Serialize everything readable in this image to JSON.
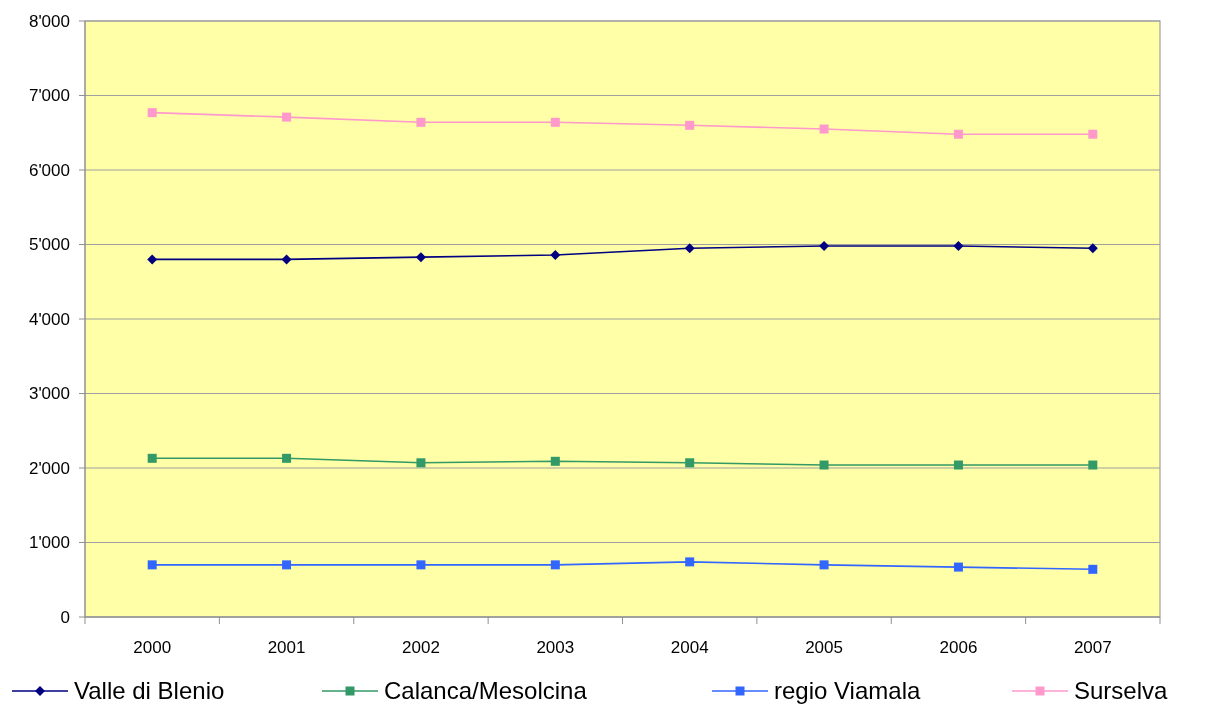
{
  "chart_data": {
    "type": "line",
    "categories": [
      "2000",
      "2001",
      "2002",
      "2003",
      "2004",
      "2005",
      "2006",
      "2007"
    ],
    "series": [
      {
        "name": "Valle di Blenio",
        "color": "#000080",
        "marker": "diamond",
        "values": [
          4800,
          4800,
          4830,
          4860,
          4950,
          4980,
          4980,
          4950
        ]
      },
      {
        "name": "Calanca/Mesolcina",
        "color": "#339966",
        "marker": "square",
        "values": [
          2130,
          2130,
          2070,
          2090,
          2070,
          2040,
          2040,
          2040
        ]
      },
      {
        "name": "regio Viamala",
        "color": "#3366ff",
        "marker": "square",
        "values": [
          700,
          700,
          700,
          700,
          740,
          700,
          670,
          640
        ]
      },
      {
        "name": "Surselva",
        "color": "#ff99cc",
        "marker": "square",
        "values": [
          6770,
          6710,
          6640,
          6640,
          6600,
          6550,
          6480,
          6480
        ]
      }
    ],
    "ylim": [
      0,
      8000
    ],
    "yticks": [
      0,
      {
        "value": 1000,
        "label": "1'000"
      },
      {
        "value": 2000,
        "label": "2'000"
      },
      {
        "value": 3000,
        "label": "3'000"
      },
      {
        "value": 4000,
        "label": "4'000"
      },
      {
        "value": 5000,
        "label": "5'000"
      },
      {
        "value": 6000,
        "label": "6'000"
      },
      {
        "value": 7000,
        "label": "7'000"
      },
      {
        "value": 8000,
        "label": "8'000"
      }
    ],
    "grid": "y",
    "legend": "bottom"
  }
}
